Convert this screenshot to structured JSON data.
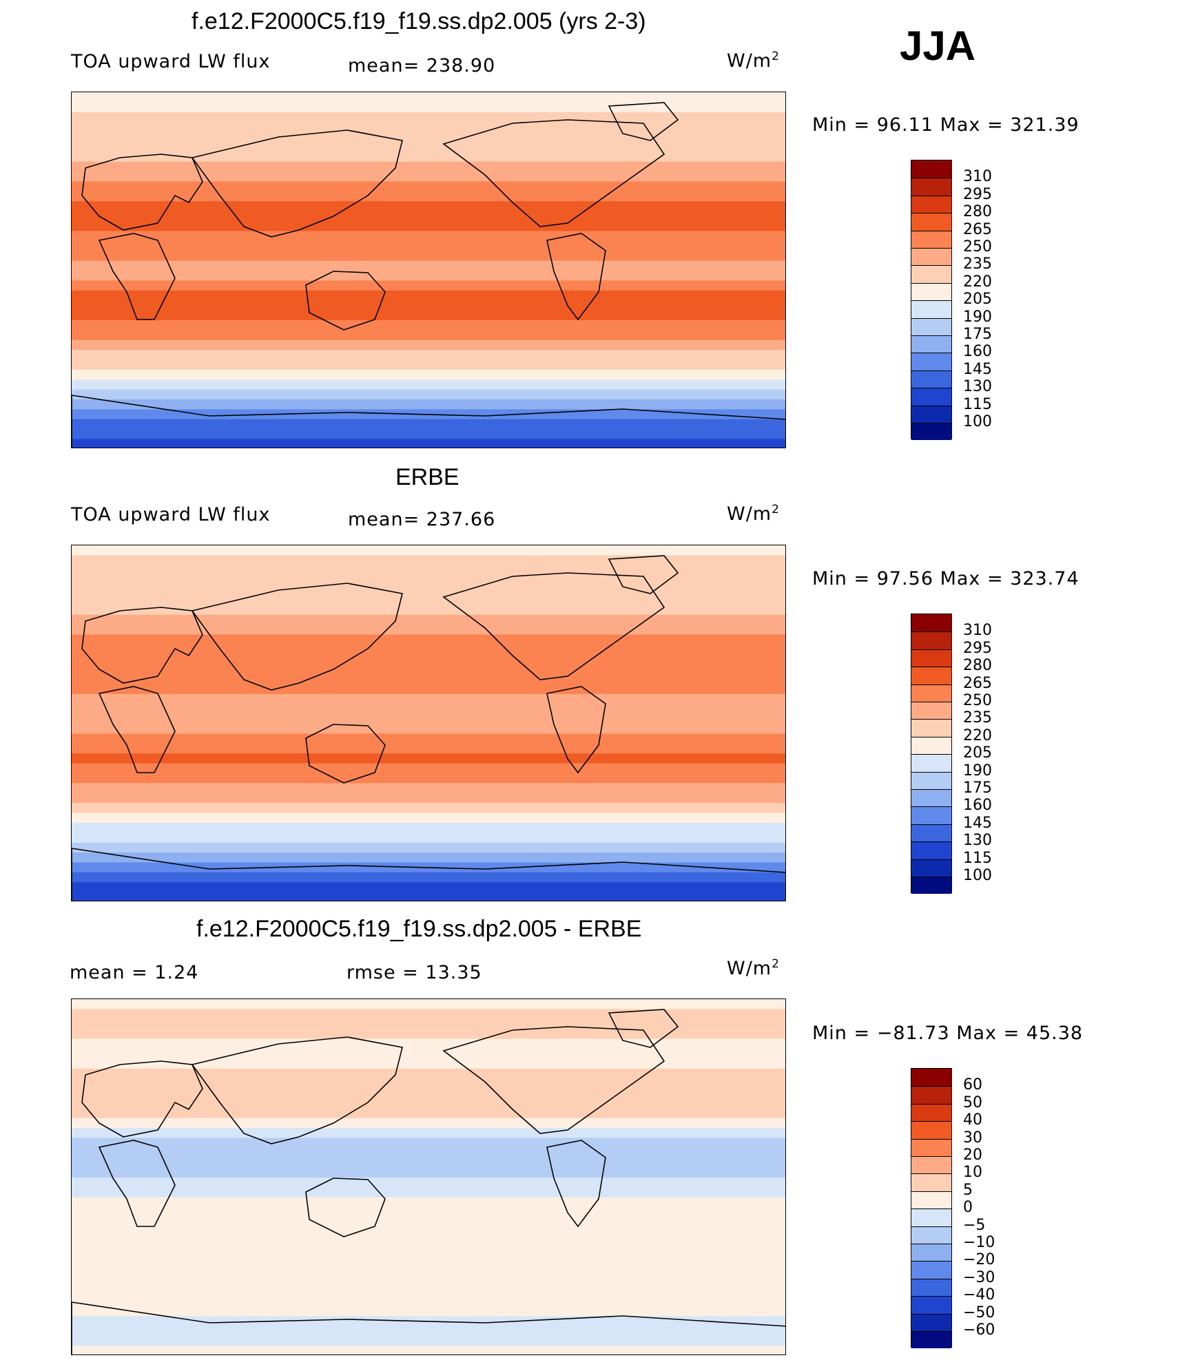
{
  "season": "JJA",
  "panels": [
    {
      "id": "model",
      "title": "f.e12.F2000C5.f19_f19.ss.dp2.005 (yrs 2-3)",
      "left_label": "TOA upward LW flux",
      "stat_label": "mean= 238.90",
      "units": "W/m",
      "units_sup": "2",
      "minmax": "Min =   96.11  Max  =  321.39"
    },
    {
      "id": "obs",
      "title": "ERBE",
      "left_label": "TOA upward LW flux",
      "stat_label": "mean= 237.66",
      "units": "W/m",
      "units_sup": "2",
      "minmax": "Min =   97.56  Max  =  323.74"
    },
    {
      "id": "diff",
      "title": "f.e12.F2000C5.f19_f19.ss.dp2.005 - ERBE",
      "left_label": "mean =     1.24",
      "stat_label": "rmse =    13.35",
      "units": "W/m",
      "units_sup": "2",
      "minmax": "Min = −81.73  Max  =    45.38"
    }
  ],
  "chart_data": [
    {
      "type": "heatmap",
      "title": "f.e12.F2000C5.f19_f19.ss.dp2.005 (yrs 2-3)",
      "variable": "TOA upward LW flux",
      "units": "W/m2",
      "mean": 238.9,
      "min": 96.11,
      "max": 321.39,
      "colorbar_levels": [
        310,
        295,
        280,
        265,
        250,
        235,
        220,
        205,
        190,
        175,
        160,
        145,
        130,
        115,
        100
      ],
      "colorbar_colors": [
        "#8b0000",
        "#b8220a",
        "#d93a12",
        "#f05a23",
        "#fb8352",
        "#fcab86",
        "#fdd0b5",
        "#fdf0e2",
        "#d6e6f8",
        "#b4cdf4",
        "#8fb0f0",
        "#5f89ea",
        "#3a66e0",
        "#1f44cf",
        "#0b2aae",
        "#000c80"
      ],
      "zonal_mean_profile": {
        "latitude": [
          90,
          75,
          60,
          45,
          30,
          15,
          0,
          -15,
          -30,
          -45,
          -60,
          -75,
          -90
        ],
        "value": [
          215,
          222,
          228,
          252,
          268,
          262,
          240,
          272,
          258,
          228,
          190,
          140,
          120
        ]
      }
    },
    {
      "type": "heatmap",
      "title": "ERBE",
      "variable": "TOA upward LW flux",
      "units": "W/m2",
      "mean": 237.66,
      "min": 97.56,
      "max": 323.74,
      "colorbar_levels": [
        310,
        295,
        280,
        265,
        250,
        235,
        220,
        205,
        190,
        175,
        160,
        145,
        130,
        115,
        100
      ],
      "colorbar_colors": [
        "#8b0000",
        "#b8220a",
        "#d93a12",
        "#f05a23",
        "#fb8352",
        "#fcab86",
        "#fdd0b5",
        "#fdf0e2",
        "#d6e6f8",
        "#b4cdf4",
        "#8fb0f0",
        "#5f89ea",
        "#3a66e0",
        "#1f44cf",
        "#0b2aae",
        "#000c80"
      ],
      "zonal_mean_profile": {
        "latitude": [
          90,
          75,
          60,
          45,
          30,
          15,
          0,
          -15,
          -30,
          -45,
          -60,
          -75,
          -90
        ],
        "value": [
          218,
          224,
          230,
          250,
          262,
          252,
          238,
          268,
          252,
          222,
          185,
          138,
          118
        ]
      }
    },
    {
      "type": "heatmap",
      "title": "f.e12.F2000C5.f19_f19.ss.dp2.005 - ERBE",
      "variable": "difference",
      "units": "W/m2",
      "mean": 1.24,
      "rmse": 13.35,
      "min": -81.73,
      "max": 45.38,
      "colorbar_levels": [
        60,
        50,
        40,
        30,
        20,
        10,
        5,
        0,
        -5,
        -10,
        -20,
        -30,
        -40,
        -50,
        -60
      ],
      "colorbar_labels": [
        "60",
        "50",
        "40",
        "30",
        "20",
        "10",
        "5",
        "0",
        "−5",
        "−10",
        "−20",
        "−30",
        "−40",
        "−50",
        "−60"
      ],
      "colorbar_colors": [
        "#8b0000",
        "#b8220a",
        "#d93a12",
        "#f05a23",
        "#fb8352",
        "#fcab86",
        "#fdd0b5",
        "#fdf0e2",
        "#d6e6f8",
        "#b4cdf4",
        "#8fb0f0",
        "#5f89ea",
        "#3a66e0",
        "#1f44cf",
        "#0b2aae",
        "#000c80"
      ],
      "zonal_mean_profile": {
        "latitude": [
          90,
          75,
          60,
          45,
          30,
          15,
          0,
          -15,
          -30,
          -45,
          -60,
          -75,
          -90
        ],
        "value": [
          4,
          6,
          3,
          8,
          6,
          -8,
          -5,
          4,
          5,
          2,
          3,
          -2,
          1
        ]
      }
    }
  ]
}
